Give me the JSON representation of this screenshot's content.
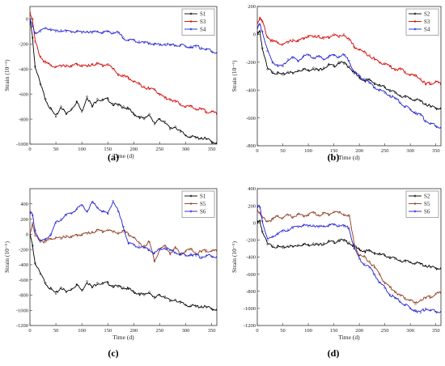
{
  "chart_data": [
    {
      "panel": "(a)",
      "type": "line",
      "xlabel": "Time (d)",
      "ylabel": "Strain (10⁻⁶)",
      "xlim": [
        0,
        360
      ],
      "ylim": [
        -1000,
        100
      ],
      "xticks": [
        0,
        50,
        100,
        150,
        200,
        250,
        300,
        350
      ],
      "yticks": [
        0,
        -200,
        -400,
        -600,
        -800,
        -1000
      ],
      "legend_position": "top-right",
      "series": [
        {
          "name": "S1",
          "color": "#000000",
          "x": [
            0,
            5,
            10,
            20,
            30,
            40,
            50,
            60,
            70,
            80,
            90,
            100,
            110,
            120,
            130,
            140,
            150,
            160,
            170,
            180,
            190,
            200,
            210,
            220,
            230,
            240,
            250,
            260,
            270,
            280,
            290,
            300,
            310,
            320,
            330,
            340,
            350,
            360
          ],
          "y": [
            0,
            -150,
            -380,
            -520,
            -640,
            -720,
            -780,
            -700,
            -760,
            -720,
            -660,
            -740,
            -620,
            -700,
            -640,
            -650,
            -640,
            -680,
            -690,
            -700,
            -720,
            -760,
            -780,
            -800,
            -760,
            -840,
            -800,
            -820,
            -880,
            -860,
            -900,
            -930,
            -940,
            -950,
            -950,
            -960,
            -980,
            -990
          ]
        },
        {
          "name": "S3",
          "color": "#d40000",
          "x": [
            0,
            5,
            10,
            20,
            30,
            40,
            50,
            60,
            70,
            80,
            90,
            100,
            110,
            120,
            130,
            140,
            150,
            160,
            170,
            180,
            190,
            200,
            210,
            220,
            230,
            240,
            250,
            260,
            270,
            280,
            290,
            300,
            310,
            320,
            330,
            340,
            350,
            360
          ],
          "y": [
            50,
            0,
            -180,
            -300,
            -350,
            -370,
            -380,
            -380,
            -370,
            -380,
            -360,
            -370,
            -380,
            -360,
            -360,
            -370,
            -360,
            -400,
            -440,
            -460,
            -470,
            -500,
            -520,
            -540,
            -560,
            -560,
            -600,
            -630,
            -640,
            -660,
            -680,
            -700,
            -700,
            -720,
            -720,
            -740,
            -740,
            -760
          ]
        },
        {
          "name": "S4",
          "color": "#1f1fd0",
          "x": [
            0,
            5,
            10,
            20,
            30,
            40,
            50,
            60,
            70,
            80,
            90,
            100,
            110,
            120,
            130,
            140,
            150,
            160,
            170,
            180,
            190,
            200,
            210,
            220,
            230,
            240,
            250,
            260,
            270,
            280,
            290,
            300,
            310,
            320,
            330,
            340,
            350,
            360
          ],
          "y": [
            0,
            -60,
            -110,
            -100,
            -70,
            -80,
            -100,
            -90,
            -100,
            -100,
            -100,
            -110,
            -100,
            -110,
            -100,
            -110,
            -100,
            -110,
            -110,
            -150,
            -170,
            -170,
            -180,
            -190,
            -190,
            -200,
            -210,
            -200,
            -210,
            -210,
            -210,
            -220,
            -220,
            -220,
            -230,
            -240,
            -260,
            -270
          ]
        }
      ]
    },
    {
      "panel": "(b)",
      "type": "line",
      "xlabel": "Time (d)",
      "ylabel": "Strain (10⁻⁶)",
      "xlim": [
        0,
        360
      ],
      "ylim": [
        -800,
        200
      ],
      "xticks": [
        0,
        50,
        100,
        150,
        200,
        250,
        300,
        350
      ],
      "yticks": [
        200,
        0,
        -200,
        -400,
        -600,
        -800
      ],
      "legend_position": "top-right",
      "series": [
        {
          "name": "S2",
          "color": "#000000",
          "x": [
            0,
            5,
            10,
            20,
            30,
            40,
            50,
            60,
            70,
            80,
            90,
            100,
            110,
            120,
            130,
            140,
            150,
            160,
            170,
            180,
            190,
            200,
            210,
            220,
            230,
            240,
            250,
            260,
            270,
            280,
            290,
            300,
            310,
            320,
            330,
            340,
            350,
            360
          ],
          "y": [
            0,
            20,
            -100,
            -250,
            -270,
            -280,
            -290,
            -270,
            -280,
            -260,
            -250,
            -260,
            -240,
            -260,
            -240,
            -220,
            -230,
            -200,
            -210,
            -230,
            -280,
            -310,
            -330,
            -330,
            -350,
            -370,
            -380,
            -400,
            -420,
            -440,
            -450,
            -460,
            -470,
            -480,
            -500,
            -520,
            -530,
            -530
          ]
        },
        {
          "name": "S3",
          "color": "#d40000",
          "x": [
            0,
            5,
            10,
            20,
            30,
            40,
            50,
            60,
            70,
            80,
            90,
            100,
            110,
            120,
            130,
            140,
            150,
            160,
            170,
            180,
            190,
            200,
            210,
            220,
            230,
            240,
            250,
            260,
            270,
            280,
            290,
            300,
            310,
            320,
            330,
            340,
            350,
            360
          ],
          "y": [
            80,
            120,
            90,
            -20,
            -50,
            -60,
            -70,
            -60,
            -40,
            -50,
            -30,
            -10,
            -20,
            -10,
            -30,
            -20,
            0,
            -20,
            0,
            -40,
            -90,
            -110,
            -130,
            -150,
            -180,
            -200,
            -210,
            -230,
            -250,
            -250,
            -270,
            -290,
            -300,
            -320,
            -360,
            -350,
            -340,
            -360
          ]
        },
        {
          "name": "S4",
          "color": "#1f1fd0",
          "x": [
            0,
            5,
            10,
            20,
            30,
            40,
            50,
            60,
            70,
            80,
            90,
            100,
            110,
            120,
            130,
            140,
            150,
            160,
            170,
            180,
            190,
            200,
            210,
            220,
            230,
            240,
            250,
            260,
            270,
            280,
            290,
            300,
            310,
            320,
            330,
            340,
            350,
            360
          ],
          "y": [
            50,
            70,
            20,
            -120,
            -200,
            -220,
            -230,
            -180,
            -170,
            -190,
            -160,
            -150,
            -170,
            -160,
            -180,
            -160,
            -150,
            -160,
            -150,
            -190,
            -270,
            -300,
            -320,
            -350,
            -380,
            -400,
            -420,
            -440,
            -460,
            -490,
            -520,
            -540,
            -560,
            -580,
            -620,
            -640,
            -660,
            -670
          ]
        }
      ]
    },
    {
      "panel": "(c)",
      "type": "line",
      "xlabel": "Time (d)",
      "ylabel": "Strain (10⁻⁶)",
      "xlim": [
        0,
        360
      ],
      "ylim": [
        -1200,
        600
      ],
      "xticks": [
        0,
        50,
        100,
        150,
        200,
        250,
        300,
        350
      ],
      "yticks": [
        400,
        200,
        0,
        -200,
        -400,
        -600,
        -800,
        -1000,
        -1200
      ],
      "legend_position": "top-right",
      "series": [
        {
          "name": "S1",
          "color": "#000000",
          "x": [
            0,
            5,
            10,
            20,
            30,
            40,
            50,
            60,
            70,
            80,
            90,
            100,
            110,
            120,
            130,
            140,
            150,
            160,
            170,
            180,
            190,
            200,
            210,
            220,
            230,
            240,
            250,
            260,
            270,
            280,
            290,
            300,
            310,
            320,
            330,
            340,
            350,
            360
          ],
          "y": [
            0,
            -150,
            -380,
            -520,
            -640,
            -720,
            -780,
            -700,
            -760,
            -720,
            -660,
            -740,
            -620,
            -700,
            -640,
            -650,
            -640,
            -680,
            -690,
            -700,
            -720,
            -760,
            -780,
            -800,
            -760,
            -840,
            -800,
            -820,
            -880,
            -860,
            -900,
            -930,
            -940,
            -950,
            -950,
            -960,
            -980,
            -990
          ]
        },
        {
          "name": "S5",
          "color": "#8b3a1e",
          "x": [
            0,
            5,
            10,
            20,
            30,
            40,
            50,
            60,
            70,
            80,
            90,
            100,
            110,
            120,
            130,
            140,
            150,
            160,
            170,
            180,
            190,
            200,
            210,
            220,
            230,
            240,
            250,
            260,
            270,
            280,
            290,
            300,
            310,
            320,
            330,
            340,
            350,
            360
          ],
          "y": [
            0,
            150,
            -20,
            -80,
            -100,
            -60,
            -40,
            -60,
            -20,
            -40,
            -10,
            0,
            10,
            30,
            50,
            40,
            60,
            30,
            20,
            40,
            0,
            -40,
            -120,
            -150,
            -100,
            -350,
            -200,
            -150,
            -250,
            -180,
            -260,
            -220,
            -200,
            -250,
            -230,
            -210,
            -220,
            -220
          ]
        },
        {
          "name": "S6",
          "color": "#1f1fd0",
          "x": [
            0,
            5,
            10,
            20,
            30,
            40,
            50,
            60,
            70,
            80,
            90,
            100,
            110,
            120,
            130,
            140,
            150,
            160,
            170,
            180,
            190,
            200,
            210,
            220,
            230,
            240,
            250,
            260,
            270,
            280,
            290,
            300,
            310,
            320,
            330,
            340,
            350,
            360
          ],
          "y": [
            300,
            250,
            50,
            -100,
            -60,
            0,
            150,
            200,
            250,
            280,
            330,
            380,
            300,
            420,
            350,
            300,
            270,
            440,
            300,
            100,
            -120,
            -140,
            -160,
            -180,
            -200,
            -250,
            -200,
            -180,
            -210,
            -240,
            -260,
            -280,
            -260,
            -280,
            -300,
            -280,
            -290,
            -300
          ]
        }
      ]
    },
    {
      "panel": "(d)",
      "type": "line",
      "xlabel": "Time (d)",
      "ylabel": "Strain (10⁻⁶)",
      "xlim": [
        0,
        360
      ],
      "ylim": [
        -1200,
        400
      ],
      "xticks": [
        0,
        50,
        100,
        150,
        200,
        250,
        300,
        350
      ],
      "yticks": [
        400,
        200,
        0,
        -200,
        -400,
        -600,
        -800,
        -1000,
        -1200
      ],
      "legend_position": "top-right",
      "series": [
        {
          "name": "S2",
          "color": "#000000",
          "x": [
            0,
            5,
            10,
            20,
            30,
            40,
            50,
            60,
            70,
            80,
            90,
            100,
            110,
            120,
            130,
            140,
            150,
            160,
            170,
            180,
            190,
            200,
            210,
            220,
            230,
            240,
            250,
            260,
            270,
            280,
            290,
            300,
            310,
            320,
            330,
            340,
            350,
            360
          ],
          "y": [
            0,
            20,
            -100,
            -250,
            -270,
            -280,
            -290,
            -270,
            -280,
            -260,
            -250,
            -260,
            -240,
            -260,
            -240,
            -220,
            -230,
            -200,
            -210,
            -230,
            -280,
            -310,
            -330,
            -330,
            -350,
            -370,
            -380,
            -400,
            -420,
            -440,
            -450,
            -460,
            -470,
            -480,
            -500,
            -520,
            -530,
            -530
          ]
        },
        {
          "name": "S5",
          "color": "#8b3a1e",
          "x": [
            0,
            5,
            10,
            20,
            30,
            40,
            50,
            60,
            70,
            80,
            90,
            100,
            110,
            120,
            130,
            140,
            150,
            160,
            170,
            180,
            190,
            200,
            210,
            220,
            230,
            240,
            250,
            260,
            270,
            280,
            290,
            300,
            310,
            320,
            330,
            340,
            350,
            360
          ],
          "y": [
            150,
            120,
            60,
            20,
            40,
            80,
            60,
            90,
            70,
            100,
            80,
            100,
            120,
            90,
            110,
            100,
            130,
            120,
            100,
            80,
            -250,
            -380,
            -400,
            -450,
            -520,
            -600,
            -700,
            -750,
            -800,
            -850,
            -880,
            -900,
            -950,
            -900,
            -880,
            -860,
            -830,
            -820
          ]
        },
        {
          "name": "S6",
          "color": "#1f1fd0",
          "x": [
            0,
            5,
            10,
            20,
            30,
            40,
            50,
            60,
            70,
            80,
            90,
            100,
            110,
            120,
            130,
            140,
            150,
            160,
            170,
            180,
            190,
            200,
            210,
            220,
            230,
            240,
            250,
            260,
            270,
            280,
            290,
            300,
            310,
            320,
            330,
            340,
            350,
            360
          ],
          "y": [
            200,
            180,
            20,
            -200,
            -160,
            -120,
            -100,
            -80,
            -60,
            -40,
            -30,
            -40,
            -30,
            -50,
            -40,
            -30,
            -20,
            -30,
            -40,
            -60,
            -300,
            -420,
            -480,
            -520,
            -600,
            -700,
            -760,
            -840,
            -880,
            -920,
            -960,
            -1000,
            -1020,
            -1050,
            -1000,
            -1020,
            -1040,
            -1040
          ]
        }
      ]
    }
  ]
}
